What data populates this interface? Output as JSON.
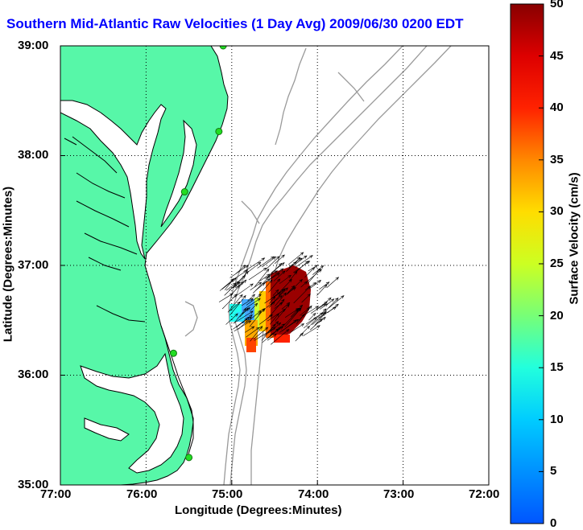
{
  "title": "Southern Mid-Atlantic Raw Velocities (1 Day Avg) 2009/06/30 0200 EDT",
  "xlabel": "Longitude (Degrees:Minutes)",
  "ylabel": "Latitude (Degrees:Minutes)",
  "colorbar_label": "Surface Velocity (cm/s)",
  "x_ticks": [
    "77:00",
    "76:00",
    "75:00",
    "74:00",
    "73:00",
    "72:00"
  ],
  "y_ticks": [
    "39:00",
    "38:00",
    "37:00",
    "36:00",
    "35:00"
  ],
  "cb_ticks": [
    "50",
    "45",
    "40",
    "35",
    "30",
    "25",
    "20",
    "15",
    "10",
    "5",
    "0"
  ],
  "colors": {
    "land": "#57f7a8",
    "title": "#0000ff",
    "grid": "#000000",
    "bathy": "#9a9a9a",
    "station": "#22dd22"
  },
  "chart_data": {
    "type": "map",
    "xlim": [
      -77,
      -72
    ],
    "ylim": [
      35,
      39
    ],
    "colorbar_range": [
      0,
      50
    ],
    "stations": [
      {
        "lon": -75.1,
        "lat": 39.0
      },
      {
        "lon": -75.15,
        "lat": 38.22
      },
      {
        "lon": -75.55,
        "lat": 37.67
      },
      {
        "lon": -75.68,
        "lat": 36.2
      },
      {
        "lon": -75.5,
        "lat": 35.25
      }
    ]
  }
}
